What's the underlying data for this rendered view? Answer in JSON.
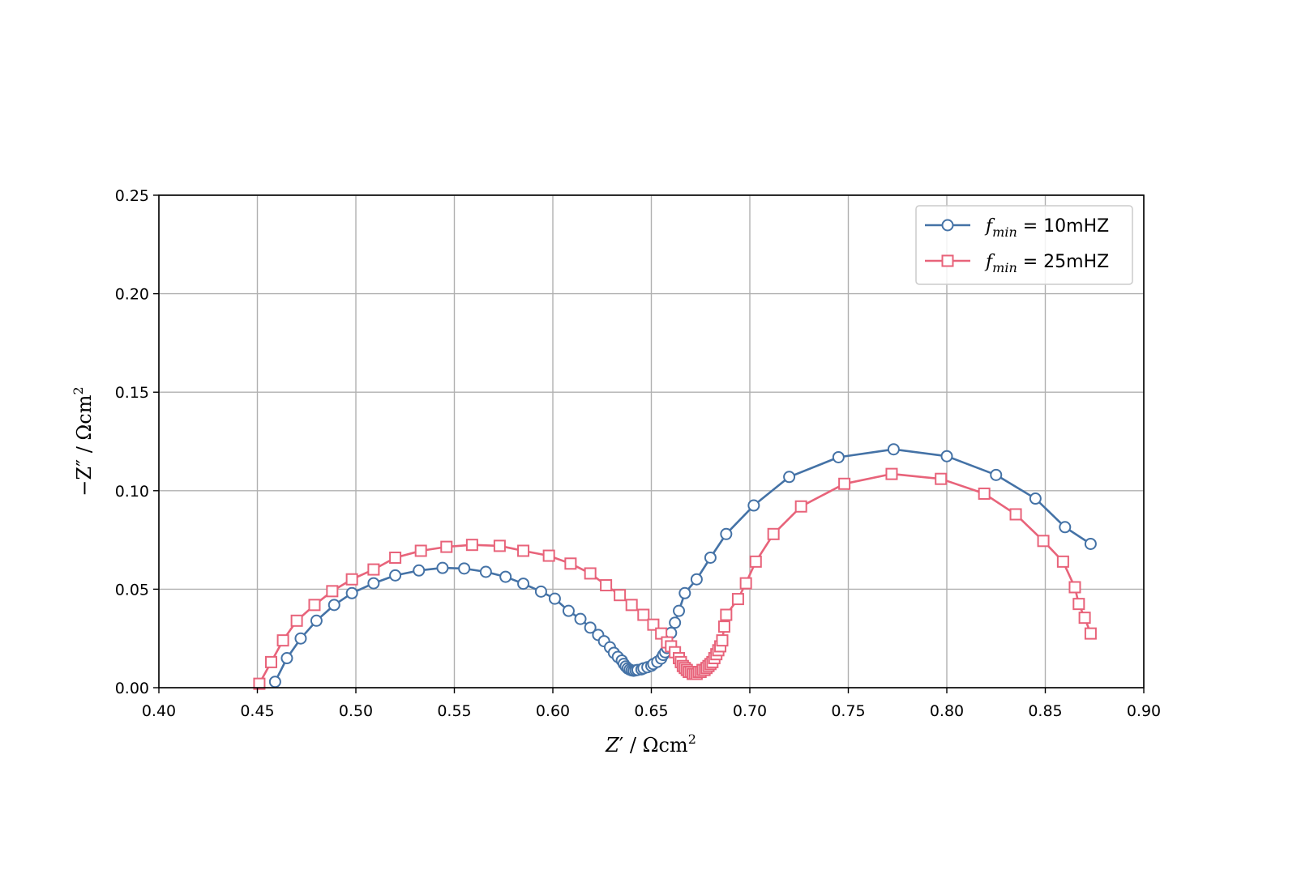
{
  "chart_data": {
    "type": "line",
    "title": "",
    "xlabel_parts": [
      "Z",
      "′",
      " / Ωcm",
      "2"
    ],
    "ylabel_parts": [
      "−Z",
      "″",
      " / Ωcm",
      "2"
    ],
    "xlim": [
      0.4,
      0.9
    ],
    "ylim": [
      0.0,
      0.25
    ],
    "xticks": [
      0.4,
      0.45,
      0.5,
      0.55,
      0.6,
      0.65,
      0.7,
      0.75,
      0.8,
      0.85,
      0.9
    ],
    "yticks": [
      0.0,
      0.05,
      0.1,
      0.15,
      0.2,
      0.25
    ],
    "xtick_labels": [
      "0.40",
      "0.45",
      "0.50",
      "0.55",
      "0.60",
      "0.65",
      "0.70",
      "0.75",
      "0.80",
      "0.85",
      "0.90"
    ],
    "ytick_labels": [
      "0.00",
      "0.05",
      "0.10",
      "0.15",
      "0.20",
      "0.25"
    ],
    "grid": true,
    "legend_position": "top-right",
    "series": [
      {
        "legend": {
          "symbol": "f",
          "subscript": "min",
          "text": " = 10mHZ"
        },
        "color": "#4472a6",
        "marker": "circle",
        "x": [
          0.459,
          0.465,
          0.472,
          0.48,
          0.489,
          0.498,
          0.509,
          0.52,
          0.532,
          0.544,
          0.555,
          0.566,
          0.576,
          0.585,
          0.594,
          0.601,
          0.608,
          0.614,
          0.619,
          0.623,
          0.626,
          0.629,
          0.631,
          0.633,
          0.635,
          0.636,
          0.637,
          0.638,
          0.639,
          0.64,
          0.641,
          0.642,
          0.643,
          0.645,
          0.646,
          0.648,
          0.65,
          0.651,
          0.653,
          0.655,
          0.656,
          0.657,
          0.658,
          0.66,
          0.662,
          0.664,
          0.667,
          0.673,
          0.68,
          0.688,
          0.702,
          0.72,
          0.745,
          0.773,
          0.8,
          0.825,
          0.845,
          0.86,
          0.873
        ],
        "y": [
          0.003,
          0.015,
          0.025,
          0.034,
          0.042,
          0.048,
          0.053,
          0.057,
          0.0595,
          0.0608,
          0.0605,
          0.0588,
          0.0563,
          0.0528,
          0.0488,
          0.0452,
          0.039,
          0.0349,
          0.0305,
          0.0268,
          0.0236,
          0.0205,
          0.0177,
          0.0156,
          0.0138,
          0.0121,
          0.0108,
          0.0098,
          0.0092,
          0.0088,
          0.0086,
          0.0088,
          0.009,
          0.0093,
          0.0098,
          0.0104,
          0.0111,
          0.012,
          0.0131,
          0.0148,
          0.0166,
          0.018,
          0.0201,
          0.0278,
          0.033,
          0.039,
          0.048,
          0.055,
          0.066,
          0.078,
          0.0925,
          0.107,
          0.117,
          0.121,
          0.1175,
          0.108,
          0.096,
          0.0815,
          0.073
        ]
      },
      {
        "legend": {
          "symbol": "f",
          "subscript": "min",
          "text": " = 25mHZ"
        },
        "color": "#e8637a",
        "marker": "square",
        "x": [
          0.451,
          0.457,
          0.463,
          0.47,
          0.479,
          0.488,
          0.498,
          0.509,
          0.52,
          0.533,
          0.546,
          0.559,
          0.573,
          0.585,
          0.598,
          0.609,
          0.619,
          0.627,
          0.634,
          0.64,
          0.646,
          0.651,
          0.655,
          0.658,
          0.66,
          0.662,
          0.664,
          0.665,
          0.666,
          0.667,
          0.668,
          0.669,
          0.67,
          0.671,
          0.672,
          0.673,
          0.674,
          0.675,
          0.676,
          0.677,
          0.678,
          0.679,
          0.68,
          0.681,
          0.682,
          0.683,
          0.684,
          0.685,
          0.686,
          0.687,
          0.688,
          0.694,
          0.698,
          0.703,
          0.712,
          0.726,
          0.748,
          0.772,
          0.797,
          0.819,
          0.835,
          0.849,
          0.859,
          0.865,
          0.867,
          0.87,
          0.873
        ],
        "y": [
          0.002,
          0.013,
          0.024,
          0.034,
          0.042,
          0.049,
          0.055,
          0.06,
          0.066,
          0.0695,
          0.0715,
          0.0725,
          0.072,
          0.0695,
          0.067,
          0.063,
          0.058,
          0.052,
          0.047,
          0.042,
          0.037,
          0.032,
          0.0275,
          0.023,
          0.021,
          0.018,
          0.015,
          0.013,
          0.011,
          0.01,
          0.009,
          0.008,
          0.008,
          0.007,
          0.007,
          0.007,
          0.008,
          0.008,
          0.009,
          0.009,
          0.01,
          0.011,
          0.012,
          0.013,
          0.015,
          0.017,
          0.019,
          0.021,
          0.024,
          0.031,
          0.037,
          0.045,
          0.053,
          0.064,
          0.078,
          0.092,
          0.1035,
          0.1085,
          0.106,
          0.0985,
          0.088,
          0.0745,
          0.064,
          0.051,
          0.0425,
          0.0355,
          0.0275
        ]
      }
    ]
  }
}
